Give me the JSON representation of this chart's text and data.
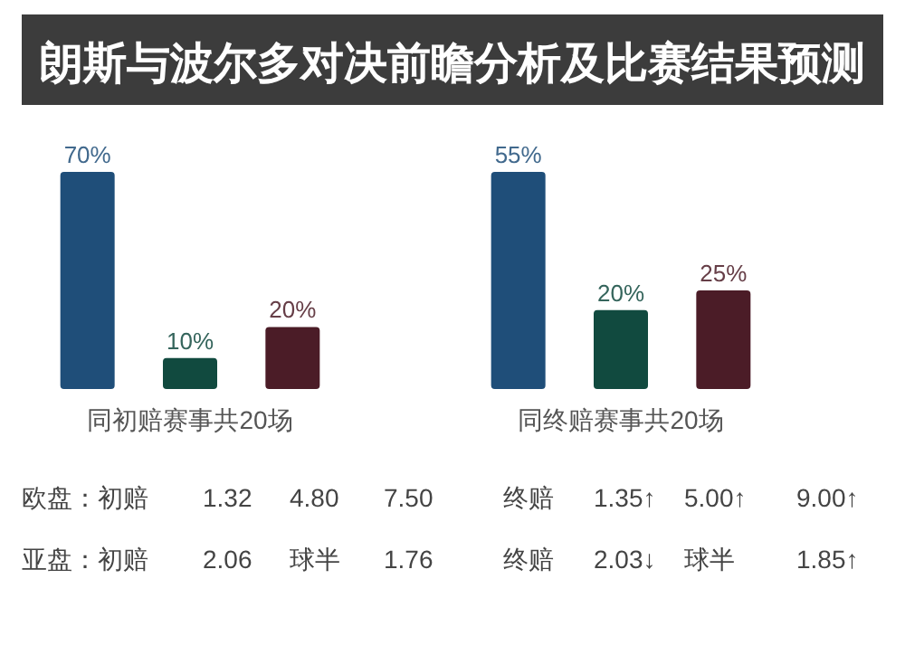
{
  "chart_data": [
    {
      "type": "bar",
      "title": "朗斯与波尔多对决前瞻分析及比赛结果预测",
      "xlabel": "同初赔赛事共20场",
      "categories": [
        null,
        null,
        null
      ],
      "values": [
        70,
        10,
        20
      ],
      "value_labels": [
        "70%",
        "10%",
        "20%"
      ],
      "colors": [
        "#1f4e79",
        "#114a3f",
        "#4b1c27"
      ]
    },
    {
      "type": "bar",
      "xlabel": "同终赔赛事共20场",
      "categories": [
        null,
        null,
        null
      ],
      "values": [
        55,
        20,
        25
      ],
      "value_labels": [
        "55%",
        "20%",
        "25%"
      ],
      "colors": [
        "#1f4e79",
        "#114a3f",
        "#4b1c27"
      ]
    },
    {
      "type": "other",
      "annotations": [
        "欧盘：初赔",
        "1.32",
        "4.80",
        "7.50",
        "终赔",
        "1.35↑",
        "5.00↑",
        "9.00↑",
        "亚盘：初赔",
        "2.06",
        "球半",
        "1.76",
        "终赔",
        "2.03↓",
        "球半",
        "1.85↑"
      ]
    }
  ]
}
